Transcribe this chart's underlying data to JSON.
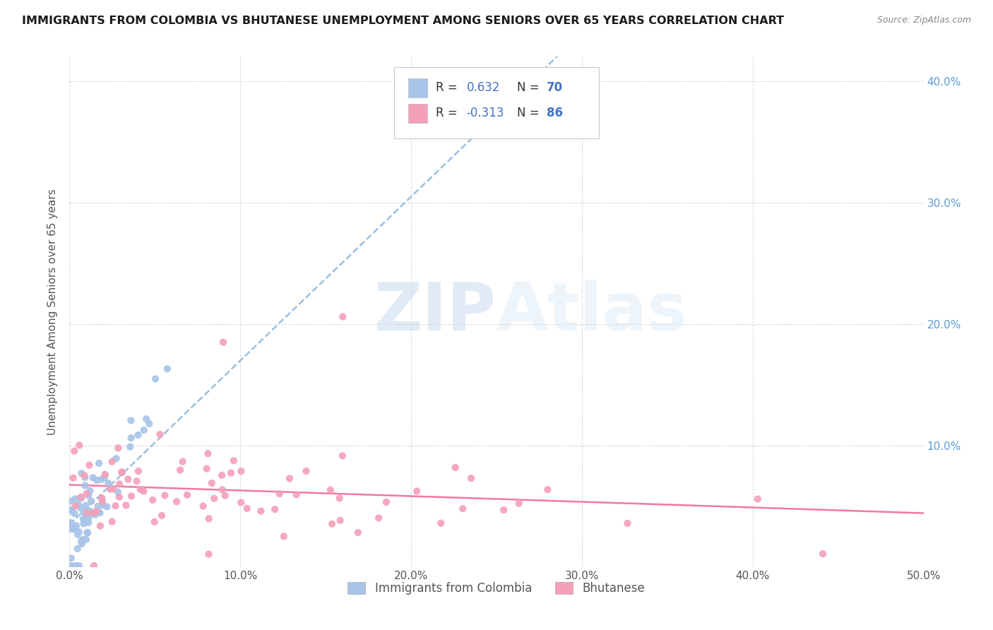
{
  "title": "IMMIGRANTS FROM COLOMBIA VS BHUTANESE UNEMPLOYMENT AMONG SENIORS OVER 65 YEARS CORRELATION CHART",
  "source": "Source: ZipAtlas.com",
  "ylabel": "Unemployment Among Seniors over 65 years",
  "xlim": [
    0.0,
    0.5
  ],
  "ylim": [
    0.0,
    0.42
  ],
  "xtick_vals": [
    0.0,
    0.1,
    0.2,
    0.3,
    0.4,
    0.5
  ],
  "xticklabels": [
    "0.0%",
    "10.0%",
    "20.0%",
    "30.0%",
    "40.0%",
    "50.0%"
  ],
  "ytick_vals": [
    0.0,
    0.1,
    0.2,
    0.3,
    0.4
  ],
  "yticklabels_right": [
    "",
    "10.0%",
    "20.0%",
    "30.0%",
    "40.0%"
  ],
  "colombia_color": "#a8c4e8",
  "bhutanese_color": "#f4a0b8",
  "colombia_line_color": "#8ab4d8",
  "bhutanese_line_color": "#f06090",
  "colombia_R": 0.632,
  "colombia_N": 70,
  "bhutanese_R": -0.313,
  "bhutanese_N": 86,
  "legend_text_color": "#4472c4",
  "watermark_color": "#dce8f5",
  "background_color": "#ffffff",
  "grid_color": "#d8d8d8",
  "title_color": "#1a1a1a",
  "source_color": "#888888",
  "ylabel_color": "#555555",
  "tick_label_color": "#555555",
  "right_tick_color": "#5b9bd5"
}
